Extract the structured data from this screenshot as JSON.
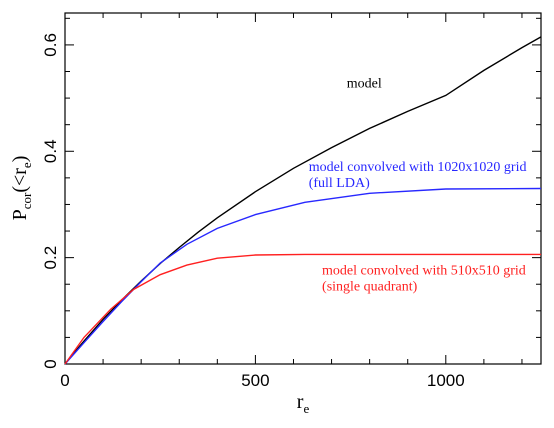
{
  "chart_data": {
    "type": "line",
    "xlabel_main": "r",
    "xlabel_sub": "e",
    "ylabel_main": "P",
    "ylabel_sub1": "cor",
    "ylabel_paren_open": "(<r",
    "ylabel_sub2": "e",
    "ylabel_paren_close": ")",
    "xlim": [
      0,
      1250
    ],
    "ylim": [
      0,
      0.66
    ],
    "x_ticks": [
      0,
      500,
      1000
    ],
    "x_tick_labels": [
      "0",
      "500",
      "1000"
    ],
    "y_ticks": [
      0,
      0.2,
      0.4,
      0.6
    ],
    "y_tick_labels": [
      "0",
      "0.2",
      "0.4",
      "0.6"
    ],
    "grid": false,
    "series": [
      {
        "name": "model",
        "color": "#000000",
        "x": [
          0,
          25,
          50,
          100,
          150,
          200,
          250,
          300,
          350,
          400,
          500,
          600,
          700,
          800,
          900,
          1000,
          1100,
          1200,
          1250
        ],
        "y": [
          0,
          0.022,
          0.043,
          0.084,
          0.121,
          0.156,
          0.189,
          0.219,
          0.248,
          0.275,
          0.324,
          0.368,
          0.407,
          0.443,
          0.475,
          0.505,
          0.552,
          0.595,
          0.615
        ]
      },
      {
        "name": "model convolved with 1020x1020 grid (full LDA)",
        "color": "#2828ff",
        "x": [
          0,
          50,
          100,
          150,
          200,
          250,
          320,
          400,
          500,
          630,
          800,
          1000,
          1250
        ],
        "y": [
          0,
          0.04,
          0.08,
          0.118,
          0.155,
          0.19,
          0.225,
          0.255,
          0.281,
          0.304,
          0.321,
          0.329,
          0.33
        ]
      },
      {
        "name": "model convolved with 510x510 grid (single quadrant)",
        "color": "#ff2020",
        "x": [
          0,
          50,
          120,
          180,
          250,
          320,
          400,
          500,
          630,
          800,
          1000,
          1250
        ],
        "y": [
          0,
          0.05,
          0.103,
          0.14,
          0.168,
          0.186,
          0.199,
          0.205,
          0.206,
          0.206,
          0.206,
          0.206
        ]
      }
    ],
    "annotations": [
      {
        "text": "model",
        "color": "#000000",
        "x": 740,
        "y": 0.52
      },
      {
        "text": "model convolved with 1020x1020 grid",
        "color": "#2828ff",
        "x": 640,
        "y": 0.363
      },
      {
        "text": "(full LDA)",
        "color": "#2828ff",
        "x": 640,
        "y": 0.333
      },
      {
        "text": "model convolved with 510x510 grid",
        "color": "#ff2020",
        "x": 675,
        "y": 0.168
      },
      {
        "text": "(single quadrant)",
        "color": "#ff2020",
        "x": 675,
        "y": 0.138
      }
    ]
  }
}
